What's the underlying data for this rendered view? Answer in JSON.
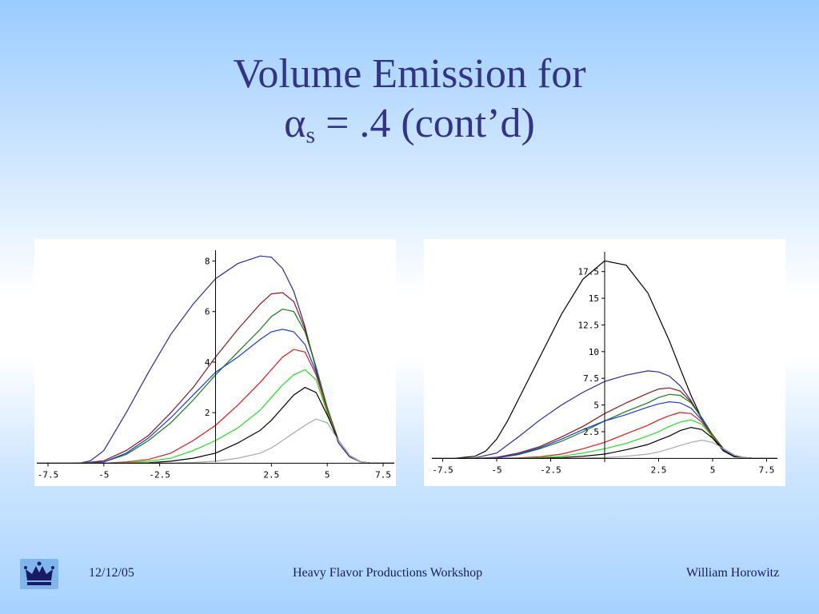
{
  "slide": {
    "title_line1": "Volume Emission for",
    "title_alpha": "α",
    "title_sub": "s",
    "title_rest": " = .4 (cont’d)"
  },
  "footer": {
    "date": "12/12/05",
    "event": "Heavy Flavor Productions Workshop",
    "author": "William Horowitz",
    "logo_icon": "crown-icon"
  },
  "colors": {
    "title": "#333388",
    "footer_text": "#1a1a66"
  },
  "chart_data": [
    {
      "type": "line",
      "xlim": [
        -8,
        8
      ],
      "ylim": [
        -0.05,
        8.3
      ],
      "x_ticks": [
        -7.5,
        -5,
        -2.5,
        2.5,
        5,
        7.5
      ],
      "x_tick_labels": [
        "-7.5",
        "-5",
        "-2.5",
        "2.5",
        "5",
        "7.5"
      ],
      "y_ticks": [
        2,
        4,
        6,
        8
      ],
      "y_tick_labels": [
        "2",
        "4",
        "6",
        "8"
      ],
      "grid": false,
      "series": [
        {
          "color": "#2a2aa0",
          "x": [
            -8,
            -7,
            -6,
            -5.6,
            -5,
            -4,
            -3,
            -2,
            -1,
            0,
            1,
            2,
            2.5,
            3,
            3.5,
            4,
            4.5,
            5,
            5.5,
            6,
            6.5,
            7,
            7.5,
            8
          ],
          "y": [
            0,
            0,
            0.02,
            0.1,
            0.5,
            2.0,
            3.6,
            5.1,
            6.3,
            7.3,
            7.9,
            8.2,
            8.15,
            7.7,
            6.8,
            5.4,
            3.7,
            2.0,
            0.8,
            0.25,
            0.05,
            0,
            0,
            0
          ]
        },
        {
          "color": "#8b1a1a",
          "x": [
            -8,
            -7,
            -6,
            -5,
            -4,
            -3,
            -2,
            -1,
            0,
            1,
            2,
            2.5,
            3,
            3.5,
            4,
            4.5,
            5,
            5.5,
            6,
            6.5,
            7,
            8
          ],
          "y": [
            0,
            0,
            0,
            0.1,
            0.5,
            1.1,
            2.0,
            3.0,
            4.2,
            5.3,
            6.3,
            6.7,
            6.75,
            6.4,
            5.3,
            3.8,
            2.2,
            0.9,
            0.3,
            0.05,
            0,
            0
          ]
        },
        {
          "color": "#157a15",
          "x": [
            -8,
            -7,
            -6,
            -5,
            -4,
            -3,
            -2,
            -1,
            0,
            1,
            2,
            2.5,
            3,
            3.5,
            4,
            4.5,
            5,
            5.5,
            6,
            6.5,
            7,
            8
          ],
          "y": [
            0,
            0,
            0,
            0.05,
            0.35,
            0.9,
            1.6,
            2.5,
            3.5,
            4.4,
            5.3,
            5.8,
            6.1,
            6.0,
            5.2,
            3.8,
            2.2,
            0.9,
            0.3,
            0.05,
            0,
            0
          ]
        },
        {
          "color": "#1a3ae0",
          "x": [
            -8,
            -7,
            -6,
            -5,
            -4,
            -3,
            -2,
            -1,
            0,
            1,
            2,
            2.5,
            3,
            3.5,
            4,
            4.5,
            5,
            5.5,
            6,
            6.5,
            7,
            8
          ],
          "y": [
            0,
            0,
            0,
            0.05,
            0.4,
            1.0,
            1.8,
            2.7,
            3.6,
            4.2,
            4.9,
            5.2,
            5.3,
            5.2,
            4.7,
            3.6,
            2.1,
            0.9,
            0.3,
            0.05,
            0,
            0
          ]
        },
        {
          "color": "#e01a1a",
          "x": [
            -8,
            -7,
            -6,
            -5,
            -4,
            -3,
            -2,
            -1,
            0,
            1,
            2,
            2.5,
            3,
            3.5,
            4,
            4.5,
            5,
            5.5,
            6,
            6.5,
            7,
            8
          ],
          "y": [
            0,
            0,
            0,
            0,
            0.05,
            0.15,
            0.4,
            0.9,
            1.5,
            2.3,
            3.2,
            3.7,
            4.2,
            4.5,
            4.4,
            3.5,
            2.1,
            0.9,
            0.3,
            0.05,
            0,
            0
          ]
        },
        {
          "color": "#22dd22",
          "x": [
            -8,
            -7,
            -6,
            -5,
            -4,
            -3,
            -2,
            -1,
            0,
            1,
            2,
            2.5,
            3,
            3.5,
            4,
            4.5,
            5,
            5.5,
            6,
            6.5,
            7,
            8
          ],
          "y": [
            0,
            0,
            0,
            0,
            0.02,
            0.08,
            0.2,
            0.5,
            0.9,
            1.4,
            2.1,
            2.6,
            3.1,
            3.5,
            3.7,
            3.3,
            2.0,
            0.9,
            0.3,
            0.05,
            0,
            0
          ]
        },
        {
          "color": "#000000",
          "x": [
            -8,
            -7,
            -6,
            -5,
            -4,
            -3,
            -2,
            -1,
            0,
            1,
            2,
            2.5,
            3,
            3.5,
            4,
            4.5,
            5,
            5.5,
            6,
            6.5,
            7,
            8
          ],
          "y": [
            0,
            0,
            0,
            0,
            0,
            0.02,
            0.08,
            0.2,
            0.4,
            0.8,
            1.3,
            1.7,
            2.2,
            2.7,
            3.0,
            2.8,
            1.9,
            0.9,
            0.3,
            0.05,
            0,
            0
          ]
        },
        {
          "color": "#a8a8a8",
          "x": [
            -8,
            -7,
            -6,
            -5,
            -4,
            -3,
            -2,
            -1,
            0,
            1,
            2,
            2.5,
            3,
            3.5,
            4,
            4.5,
            5,
            5.5,
            6,
            6.5,
            7,
            8
          ],
          "y": [
            0,
            0,
            0,
            0,
            0,
            0,
            0.01,
            0.03,
            0.08,
            0.2,
            0.4,
            0.6,
            0.9,
            1.2,
            1.5,
            1.75,
            1.6,
            0.9,
            0.3,
            0.05,
            0,
            0
          ]
        }
      ]
    },
    {
      "type": "line",
      "xlim": [
        -8,
        8
      ],
      "ylim": [
        -0.2,
        19.2
      ],
      "x_ticks": [
        -7.5,
        -5,
        -2.5,
        2.5,
        5,
        7.5
      ],
      "x_tick_labels": [
        "-7.5",
        "-5",
        "-2.5",
        "2.5",
        "5",
        "7.5"
      ],
      "y_ticks": [
        2.5,
        5,
        7.5,
        10,
        12.5,
        15,
        17.5
      ],
      "y_tick_labels": [
        "2.5",
        "5",
        "7.5",
        "10",
        "12.5",
        "15",
        "17.5"
      ],
      "grid": false,
      "series": [
        {
          "color": "#000000",
          "x": [
            -8,
            -7,
            -6,
            -5.5,
            -5,
            -4.5,
            -4,
            -3,
            -2,
            -1,
            0,
            1,
            2,
            3,
            3.5,
            4,
            4.5,
            5,
            5.5,
            6,
            7,
            8
          ],
          "y": [
            0,
            0,
            0.2,
            0.7,
            1.8,
            3.5,
            5.5,
            9.5,
            13.5,
            16.8,
            18.5,
            18.1,
            15.5,
            11.0,
            8.4,
            5.9,
            3.7,
            1.9,
            0.7,
            0.15,
            0,
            0
          ]
        },
        {
          "color": "#2a2aa0",
          "x": [
            -8,
            -7,
            -6,
            -5,
            -4,
            -3,
            -2,
            -1,
            0,
            1,
            2,
            2.5,
            3,
            3.5,
            4,
            4.5,
            5,
            5.5,
            6,
            6.5,
            7,
            8
          ],
          "y": [
            0,
            0,
            0.05,
            0.5,
            2.0,
            3.6,
            5.0,
            6.2,
            7.2,
            7.8,
            8.2,
            8.1,
            7.7,
            6.8,
            5.4,
            3.7,
            2.0,
            0.8,
            0.25,
            0.05,
            0,
            0
          ]
        },
        {
          "color": "#8b1a1a",
          "x": [
            -8,
            -7,
            -6,
            -5,
            -4,
            -3,
            -2,
            -1,
            0,
            1,
            2,
            2.5,
            3,
            3.5,
            4,
            4.5,
            5,
            5.5,
            6,
            6.5,
            7,
            8
          ],
          "y": [
            0,
            0,
            0,
            0.1,
            0.5,
            1.1,
            2.0,
            3.0,
            4.2,
            5.2,
            6.1,
            6.5,
            6.6,
            6.3,
            5.3,
            3.8,
            2.2,
            0.9,
            0.3,
            0.05,
            0,
            0
          ]
        },
        {
          "color": "#157a15",
          "x": [
            -8,
            -7,
            -6,
            -5,
            -4,
            -3,
            -2,
            -1,
            0,
            1,
            2,
            2.5,
            3,
            3.5,
            4,
            4.5,
            5,
            5.5,
            6,
            6.5,
            7,
            8
          ],
          "y": [
            0,
            0,
            0,
            0.05,
            0.35,
            0.9,
            1.6,
            2.5,
            3.5,
            4.4,
            5.2,
            5.7,
            6.0,
            5.9,
            5.2,
            3.8,
            2.2,
            0.9,
            0.3,
            0.05,
            0,
            0
          ]
        },
        {
          "color": "#1a3ae0",
          "x": [
            -8,
            -7,
            -6,
            -5,
            -4,
            -3,
            -2,
            -1,
            0,
            1,
            2,
            2.5,
            3,
            3.5,
            4,
            4.5,
            5,
            5.5,
            6,
            6.5,
            7,
            8
          ],
          "y": [
            0,
            0,
            0,
            0.05,
            0.4,
            1.0,
            1.8,
            2.7,
            3.5,
            4.1,
            4.8,
            5.1,
            5.3,
            5.2,
            4.7,
            3.6,
            2.1,
            0.9,
            0.3,
            0.05,
            0,
            0
          ]
        },
        {
          "color": "#e01a1a",
          "x": [
            -8,
            -7,
            -6,
            -5,
            -4,
            -3,
            -2,
            -1,
            0,
            1,
            2,
            2.5,
            3,
            3.5,
            4,
            4.5,
            5,
            5.5,
            6,
            6.5,
            7,
            8
          ],
          "y": [
            0,
            0,
            0,
            0,
            0.05,
            0.15,
            0.4,
            0.9,
            1.5,
            2.3,
            3.1,
            3.6,
            4.0,
            4.3,
            4.2,
            3.4,
            2.1,
            0.9,
            0.3,
            0.05,
            0,
            0
          ]
        },
        {
          "color": "#22dd22",
          "x": [
            -8,
            -7,
            -6,
            -5,
            -4,
            -3,
            -2,
            -1,
            0,
            1,
            2,
            2.5,
            3,
            3.5,
            4,
            4.5,
            5,
            5.5,
            6,
            6.5,
            7,
            8
          ],
          "y": [
            0,
            0,
            0,
            0,
            0.02,
            0.08,
            0.2,
            0.5,
            0.9,
            1.4,
            2.1,
            2.5,
            3.0,
            3.4,
            3.6,
            3.2,
            2.0,
            0.9,
            0.3,
            0.05,
            0,
            0
          ]
        },
        {
          "color": "#000000",
          "x": [
            -8,
            -7,
            -6,
            -5,
            -4,
            -3,
            -2,
            -1,
            0,
            1,
            2,
            2.5,
            3,
            3.5,
            4,
            4.5,
            5,
            5.5,
            6,
            6.5,
            7,
            8
          ],
          "y": [
            0,
            0,
            0,
            0,
            0,
            0.02,
            0.08,
            0.2,
            0.4,
            0.8,
            1.3,
            1.7,
            2.1,
            2.6,
            2.9,
            2.7,
            1.9,
            0.9,
            0.3,
            0.05,
            0,
            0
          ]
        },
        {
          "color": "#a8a8a8",
          "x": [
            -8,
            -7,
            -6,
            -5,
            -4,
            -3,
            -2,
            -1,
            0,
            1,
            2,
            2.5,
            3,
            3.5,
            4,
            4.5,
            5,
            5.5,
            6,
            6.5,
            7,
            8
          ],
          "y": [
            0,
            0,
            0,
            0,
            0,
            0,
            0.01,
            0.03,
            0.08,
            0.2,
            0.4,
            0.6,
            0.9,
            1.2,
            1.5,
            1.7,
            1.5,
            0.9,
            0.3,
            0.05,
            0,
            0
          ]
        }
      ]
    }
  ]
}
